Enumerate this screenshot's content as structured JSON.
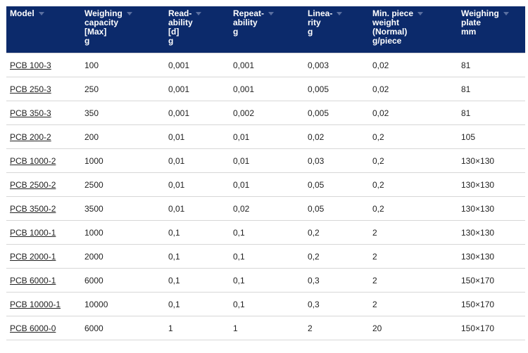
{
  "table": {
    "headers": [
      {
        "label": "Model",
        "unit": "",
        "sortable": true
      },
      {
        "label": "Weighing\ncapacity\n[Max]",
        "unit": "g",
        "sortable": true
      },
      {
        "label": "Read-\nability\n[d]",
        "unit": "g",
        "sortable": true
      },
      {
        "label": "Repeat-\nability",
        "unit": "g",
        "sortable": true
      },
      {
        "label": "Linea-\nrity",
        "unit": "g",
        "sortable": true
      },
      {
        "label": "Min. piece\nweight\n(Normal)",
        "unit": "g/piece",
        "sortable": true
      },
      {
        "label": "Weighing\nplate",
        "unit": "mm",
        "sortable": true
      }
    ],
    "rows": [
      [
        "PCB 100-3",
        "100",
        "0,001",
        "0,001",
        "0,003",
        "0,02",
        "81"
      ],
      [
        "PCB 250-3",
        "250",
        "0,001",
        "0,001",
        "0,005",
        "0,02",
        "81"
      ],
      [
        "PCB 350-3",
        "350",
        "0,001",
        "0,002",
        "0,005",
        "0,02",
        "81"
      ],
      [
        "PCB 200-2",
        "200",
        "0,01",
        "0,01",
        "0,02",
        "0,2",
        "105"
      ],
      [
        "PCB 1000-2",
        "1000",
        "0,01",
        "0,01",
        "0,03",
        "0,2",
        "130×130"
      ],
      [
        "PCB 2500-2",
        "2500",
        "0,01",
        "0,01",
        "0,05",
        "0,2",
        "130×130"
      ],
      [
        "PCB 3500-2",
        "3500",
        "0,01",
        "0,02",
        "0,05",
        "0,2",
        "130×130"
      ],
      [
        "PCB 1000-1",
        "1000",
        "0,1",
        "0,1",
        "0,2",
        "2",
        "130×130"
      ],
      [
        "PCB 2000-1",
        "2000",
        "0,1",
        "0,1",
        "0,2",
        "2",
        "130×130"
      ],
      [
        "PCB 6000-1",
        "6000",
        "0,1",
        "0,1",
        "0,3",
        "2",
        "150×170"
      ],
      [
        "PCB 10000-1",
        "10000",
        "0,1",
        "0,1",
        "0,3",
        "2",
        "150×170"
      ],
      [
        "PCB 6000-0",
        "6000",
        "1",
        "1",
        "2",
        "20",
        "150×170"
      ]
    ]
  },
  "colors": {
    "header_bg": "#0c2a6b",
    "header_text": "#ffffff",
    "row_border": "#d7d7d7"
  },
  "icons": {
    "sort": "sort-arrow-icon"
  }
}
